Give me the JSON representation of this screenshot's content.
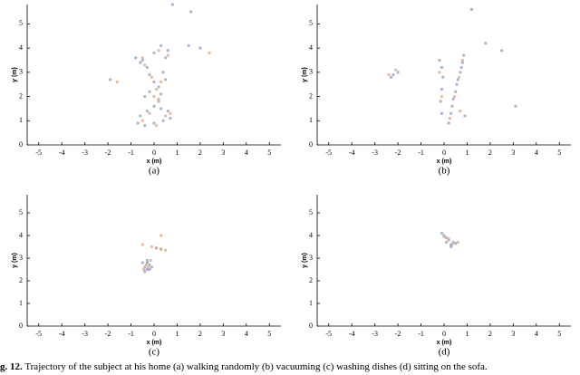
{
  "chart_data": [
    {
      "type": "scatter",
      "panel_label": "(a)",
      "xlabel": "x (m)",
      "ylabel": "y (m)",
      "xlim": [
        -5.5,
        5.5
      ],
      "ylim": [
        0,
        5.8
      ],
      "xticks": [
        -5,
        -4,
        -3,
        -2,
        -1,
        0,
        1,
        2,
        3,
        4,
        5
      ],
      "yticks": [
        0,
        1,
        2,
        3,
        4,
        5
      ],
      "series": [
        {
          "color": "#8c9cc0",
          "x": [
            -0.5,
            -0.3,
            -0.2,
            0,
            0.2,
            0.3,
            0.2,
            0,
            -0.3,
            -0.6,
            -0.7,
            -0.4,
            0,
            0.4,
            0.7,
            0.6,
            0.3,
            0.5,
            0.6,
            0.3,
            0,
            -0.6,
            -0.8,
            0.4,
            0.5,
            1.5,
            2,
            -1.9,
            0.8,
            1.6,
            -0.2,
            -0.4
          ],
          "values": [
            3.5,
            3.2,
            2.9,
            2.6,
            2.4,
            2.1,
            1.8,
            1.6,
            1.4,
            1.2,
            0.9,
            0.8,
            0.9,
            1.0,
            1.1,
            1.4,
            1.5,
            3.6,
            3.9,
            4.1,
            3.8,
            3.4,
            3.6,
            3.0,
            2.7,
            4.1,
            4.0,
            2.7,
            5.8,
            5.5,
            2.2,
            2.0
          ]
        },
        {
          "color": "#e2a27a",
          "x": [
            -0.4,
            -0.1,
            0.1,
            0.2,
            -0.2,
            -0.5,
            0.1,
            0.5,
            0.6,
            0.2,
            -0.5,
            0.3,
            2.4,
            -1.6,
            0,
            0.7
          ],
          "values": [
            3.3,
            2.8,
            2.3,
            1.9,
            1.3,
            1.0,
            0.8,
            1.2,
            3.7,
            3.9,
            3.6,
            2.6,
            3.8,
            2.6,
            2.0,
            1.3
          ]
        }
      ]
    },
    {
      "type": "scatter",
      "panel_label": "(b)",
      "xlabel": "x (m)",
      "ylabel": "y (m)",
      "xlim": [
        -5.5,
        5.5
      ],
      "ylim": [
        0,
        5.8
      ],
      "xticks": [
        -5,
        -4,
        -3,
        -2,
        -1,
        0,
        1,
        2,
        3,
        4,
        5
      ],
      "yticks": [
        0,
        1,
        2,
        3,
        4,
        5
      ],
      "series": [
        {
          "color": "#8c9cc0",
          "x": [
            0.2,
            0.3,
            0.35,
            0.4,
            0.5,
            0.55,
            0.6,
            0.7,
            0.75,
            0.8,
            0.85,
            -0.1,
            -0.15,
            -0.1,
            -0.05,
            -0.1,
            -0.2,
            -2.2,
            -2.0,
            -2.3,
            1.2,
            1.8,
            3.1,
            2.5,
            0.9
          ],
          "values": [
            0.9,
            1.3,
            1.6,
            1.9,
            2.2,
            2.5,
            2.7,
            3.0,
            3.2,
            3.4,
            3.7,
            1.3,
            1.8,
            2.3,
            2.8,
            3.2,
            3.5,
            2.9,
            3.0,
            2.8,
            5.6,
            4.2,
            1.6,
            3.9,
            1.2
          ]
        },
        {
          "color": "#e2a27a",
          "x": [
            0.25,
            0.45,
            0.65,
            0.8,
            -0.1,
            -0.2,
            -2.1,
            -2.4,
            0.7
          ],
          "values": [
            1.1,
            2.0,
            2.8,
            3.5,
            2.0,
            3.0,
            3.1,
            2.9,
            1.4
          ]
        }
      ]
    },
    {
      "type": "scatter",
      "panel_label": "(c)",
      "xlabel": "x (m)",
      "ylabel": "y (m)",
      "xlim": [
        -5.5,
        5.5
      ],
      "ylim": [
        0,
        5.8
      ],
      "xticks": [
        -5,
        -4,
        -3,
        -2,
        -1,
        0,
        1,
        2,
        3,
        4,
        5
      ],
      "yticks": [
        0,
        1,
        2,
        3,
        4,
        5
      ],
      "series": [
        {
          "color": "#8c9cc0",
          "x": [
            -0.4,
            -0.3,
            -0.2,
            -0.5,
            -0.3,
            -0.1,
            -0.4,
            -0.2,
            -0.3,
            0.1,
            0.3
          ],
          "values": [
            2.6,
            2.5,
            2.7,
            2.8,
            2.9,
            2.6,
            2.4,
            2.5,
            2.8,
            3.45,
            3.4
          ]
        },
        {
          "color": "#e2a27a",
          "x": [
            -0.1,
            0.1,
            0.3,
            0.5,
            -0.35,
            -0.25,
            -0.45,
            -0.15,
            -0.5,
            0.3
          ],
          "values": [
            3.5,
            3.45,
            3.4,
            3.35,
            2.7,
            2.6,
            2.5,
            2.9,
            3.6,
            4.0
          ]
        }
      ]
    },
    {
      "type": "scatter",
      "panel_label": "(d)",
      "xlabel": "x (m)",
      "ylabel": "y (m)",
      "xlim": [
        -5.5,
        5.5
      ],
      "ylim": [
        0,
        5.8
      ],
      "xticks": [
        -5,
        -4,
        -3,
        -2,
        -1,
        0,
        1,
        2,
        3,
        4,
        5
      ],
      "yticks": [
        0,
        1,
        2,
        3,
        4,
        5
      ],
      "series": [
        {
          "color": "#8c9cc0",
          "x": [
            -0.1,
            0,
            0.1,
            0.2,
            0.3,
            0.4,
            0.5,
            0.3,
            0.1
          ],
          "values": [
            4.1,
            4.0,
            3.9,
            3.8,
            3.6,
            3.7,
            3.65,
            3.5,
            3.7
          ]
        },
        {
          "color": "#e2a27a",
          "x": [
            0,
            0.2,
            0.35,
            0.6
          ],
          "values": [
            3.95,
            3.85,
            3.6,
            3.7
          ]
        }
      ]
    }
  ],
  "figure_caption": {
    "label": "g. 12.",
    "text": "Trajectory of the subject at his home (a) walking randomly (b) vacuuming (c) washing dishes (d) sitting on the sofa."
  }
}
